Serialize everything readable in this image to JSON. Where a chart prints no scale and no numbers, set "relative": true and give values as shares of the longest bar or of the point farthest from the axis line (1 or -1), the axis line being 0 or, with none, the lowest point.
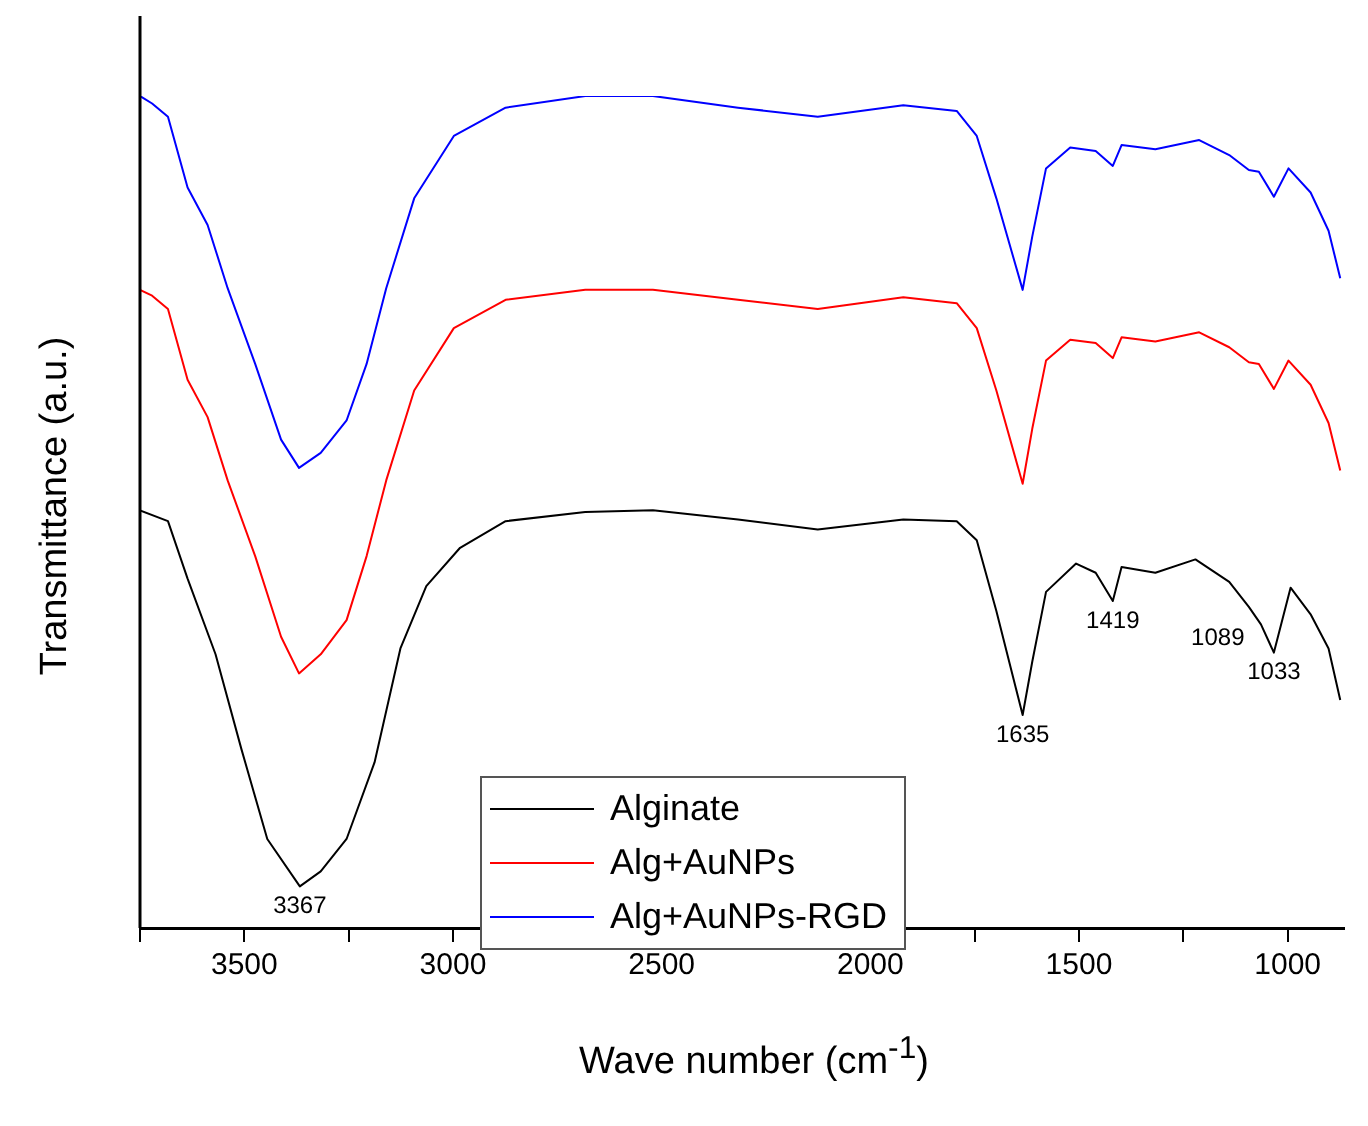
{
  "chart_data": {
    "type": "line",
    "relative": true,
    "xlabel": "Wave number (cm$^{-1}$)",
    "ylabel": "Transmittance (a.u.)",
    "xlim": [
      3750,
      865
    ],
    "xticks": [
      {
        "value": 3750,
        "label": null
      },
      3500,
      {
        "value": 3250,
        "label": null
      },
      3000,
      {
        "value": 2750,
        "label": null
      },
      2500,
      {
        "value": 2250,
        "label": null
      },
      2000,
      {
        "value": 1750,
        "label": null
      },
      1500,
      {
        "value": 1250,
        "label": null
      },
      1000
    ],
    "legend": "bottom",
    "marker": "none",
    "line_style": "solid",
    "grid": false,
    "series": [
      {
        "name": "Alginate",
        "color": "#000000",
        "x": [
          3750,
          3683,
          3636,
          3569,
          3507,
          3445,
          3367,
          3317,
          3255,
          3188,
          3126,
          3064,
          2983,
          2874,
          2683,
          2521,
          2317,
          2126,
          1921,
          1793,
          1745,
          1698,
          1635,
          1612,
          1579,
          1507,
          1460,
          1419,
          1398,
          1317,
          1221,
          1140,
          1093,
          1064,
          1033,
          993,
          945,
          902,
          874
        ],
        "values": [
          0.502,
          0.489,
          0.42,
          0.329,
          0.215,
          0.107,
          0.05,
          0.068,
          0.107,
          0.199,
          0.336,
          0.411,
          0.457,
          0.489,
          0.5,
          0.502,
          0.491,
          0.479,
          0.491,
          0.489,
          0.466,
          0.381,
          0.256,
          0.32,
          0.404,
          0.438,
          0.427,
          0.393,
          0.434,
          0.427,
          0.443,
          0.416,
          0.386,
          0.365,
          0.331,
          0.409,
          0.377,
          0.336,
          0.274
        ]
      },
      {
        "name": "Alg+AuNPs",
        "color": "#ff0000",
        "x": [
          3750,
          3721,
          3683,
          3636,
          3588,
          3540,
          3474,
          3412,
          3369,
          3317,
          3255,
          3207,
          3160,
          3093,
          2998,
          2874,
          2683,
          2521,
          2317,
          2126,
          1921,
          1793,
          1745,
          1698,
          1635,
          1612,
          1579,
          1521,
          1460,
          1419,
          1398,
          1317,
          1212,
          1140,
          1093,
          1069,
          1033,
          998,
          945,
          902,
          874
        ],
        "values": [
          0.767,
          0.76,
          0.744,
          0.659,
          0.614,
          0.538,
          0.447,
          0.35,
          0.306,
          0.329,
          0.37,
          0.447,
          0.538,
          0.646,
          0.721,
          0.755,
          0.767,
          0.767,
          0.755,
          0.744,
          0.758,
          0.751,
          0.721,
          0.646,
          0.534,
          0.6,
          0.682,
          0.707,
          0.703,
          0.685,
          0.71,
          0.705,
          0.716,
          0.698,
          0.68,
          0.678,
          0.648,
          0.682,
          0.653,
          0.607,
          0.55
        ]
      },
      {
        "name": "Alg+AuNPs-RGD",
        "color": "#0000ff",
        "x": [
          3750,
          3721,
          3683,
          3636,
          3588,
          3540,
          3474,
          3412,
          3369,
          3317,
          3255,
          3207,
          3160,
          3093,
          2998,
          2874,
          2683,
          2521,
          2317,
          2126,
          1921,
          1793,
          1745,
          1698,
          1635,
          1612,
          1579,
          1521,
          1460,
          1419,
          1398,
          1317,
          1212,
          1140,
          1093,
          1069,
          1033,
          998,
          945,
          902,
          874
        ],
        "values": [
          1,
          0.991,
          0.975,
          0.89,
          0.845,
          0.769,
          0.678,
          0.587,
          0.553,
          0.571,
          0.61,
          0.678,
          0.769,
          0.877,
          0.952,
          0.986,
          1,
          1,
          0.986,
          0.975,
          0.989,
          0.982,
          0.952,
          0.877,
          0.767,
          0.831,
          0.913,
          0.938,
          0.934,
          0.916,
          0.941,
          0.936,
          0.947,
          0.929,
          0.911,
          0.909,
          0.879,
          0.913,
          0.884,
          0.838,
          0.781
        ]
      }
    ],
    "annotations": [
      {
        "text": "3367",
        "x": 3367,
        "y": 0.05
      },
      {
        "text": "1635",
        "x": 1635,
        "y": 0.256
      },
      {
        "text": "1419",
        "x": 1419,
        "y": 0.393
      },
      {
        "text": "1089",
        "x": 1089,
        "y": 0.386
      },
      {
        "text": "1033",
        "x": 1033,
        "y": 0.331
      }
    ]
  }
}
